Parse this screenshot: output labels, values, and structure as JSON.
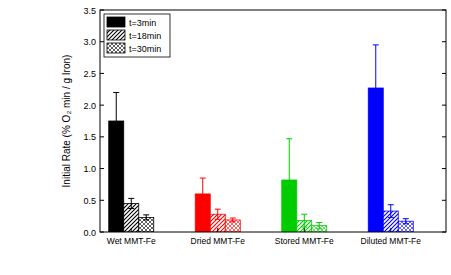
{
  "chart_data": {
    "type": "bar",
    "y_label": "Initial Rate (% O₂ min / g Iron)",
    "categories": [
      "Wet MMT-Fe",
      "Dried MMT-Fe",
      "Stored MMT-Fe",
      "Diluted MMT-Fe"
    ],
    "colors": [
      "#000000",
      "#ff0000",
      "#00cc00",
      "#0000ff"
    ],
    "series": [
      {
        "name": "t=3min",
        "color": "#000000",
        "values": [
          1.75,
          0.6,
          0.82,
          2.27
        ],
        "errors": [
          0.45,
          0.25,
          0.65,
          0.68
        ]
      },
      {
        "name": "t=18min",
        "color": "#000000",
        "values": [
          0.45,
          0.28,
          0.18,
          0.33
        ],
        "errors": [
          0.08,
          0.08,
          0.1,
          0.1
        ]
      },
      {
        "name": "t=30min",
        "color": "#000000",
        "values": [
          0.23,
          0.19,
          0.1,
          0.17
        ],
        "errors": [
          0.04,
          0.03,
          0.05,
          0.04
        ]
      }
    ],
    "ylim": [
      0,
      3.5
    ],
    "yticks": [
      {
        "value": 0,
        "label": "0.0"
      },
      {
        "value": 0.5,
        "label": "0.5"
      },
      {
        "value": 1,
        "label": "1.0"
      },
      {
        "value": 1.5,
        "label": "1.5"
      },
      {
        "value": 2,
        "label": "2.0"
      },
      {
        "value": 2.5,
        "label": "2.5"
      },
      {
        "value": 3,
        "label": "3.0"
      },
      {
        "value": 3.5,
        "label": "3.5"
      }
    ],
    "legend": "top-left",
    "grid": false
  }
}
